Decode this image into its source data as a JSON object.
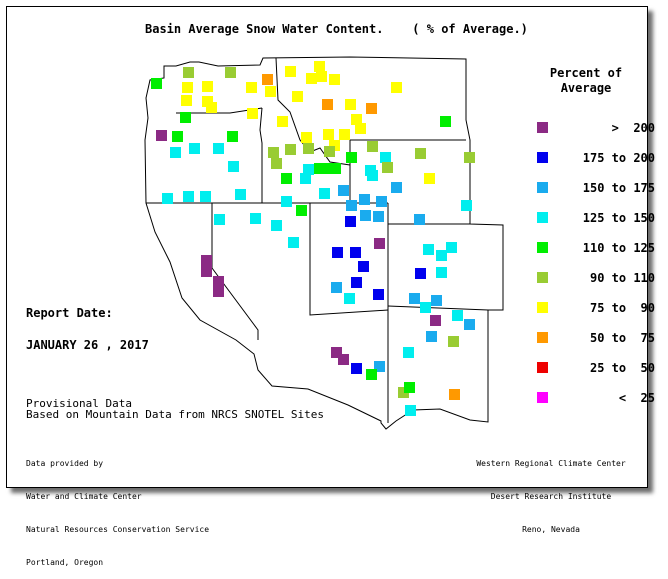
{
  "title": "Basin Average Snow Water Content.    ( % of Average.)",
  "legend": {
    "title": "Percent of Average",
    "items": [
      {
        "label": ">  200",
        "color": "#8b2a84"
      },
      {
        "label": "175 to 200",
        "color": "#0000ee"
      },
      {
        "label": "150 to 175",
        "color": "#1aabee"
      },
      {
        "label": "125 to 150",
        "color": "#00eeee"
      },
      {
        "label": "110 to 125",
        "color": "#00ee00"
      },
      {
        "label": "90 to 110",
        "color": "#99cc33"
      },
      {
        "label": "75 to  90",
        "color": "#ffff00"
      },
      {
        "label": "50 to  75",
        "color": "#ff9900"
      },
      {
        "label": "25 to  50",
        "color": "#ee0000"
      },
      {
        "label": "<  25",
        "color": "#ff00ff"
      }
    ]
  },
  "report": {
    "label": "Report Date:",
    "date": "JANUARY 26 , 2017"
  },
  "provisional": {
    "line1": "Provisional Data",
    "line2": "Based on Mountain Data from NRCS SNOTEL Sites"
  },
  "credits_left": [
    "Data provided by",
    "Water and Climate Center",
    "Natural Resources Conservation Service",
    "Portland, Oregon"
  ],
  "credits_right": [
    "Western Regional Climate Center",
    "Desert Research Institute",
    "Reno, Nevada"
  ]
}
